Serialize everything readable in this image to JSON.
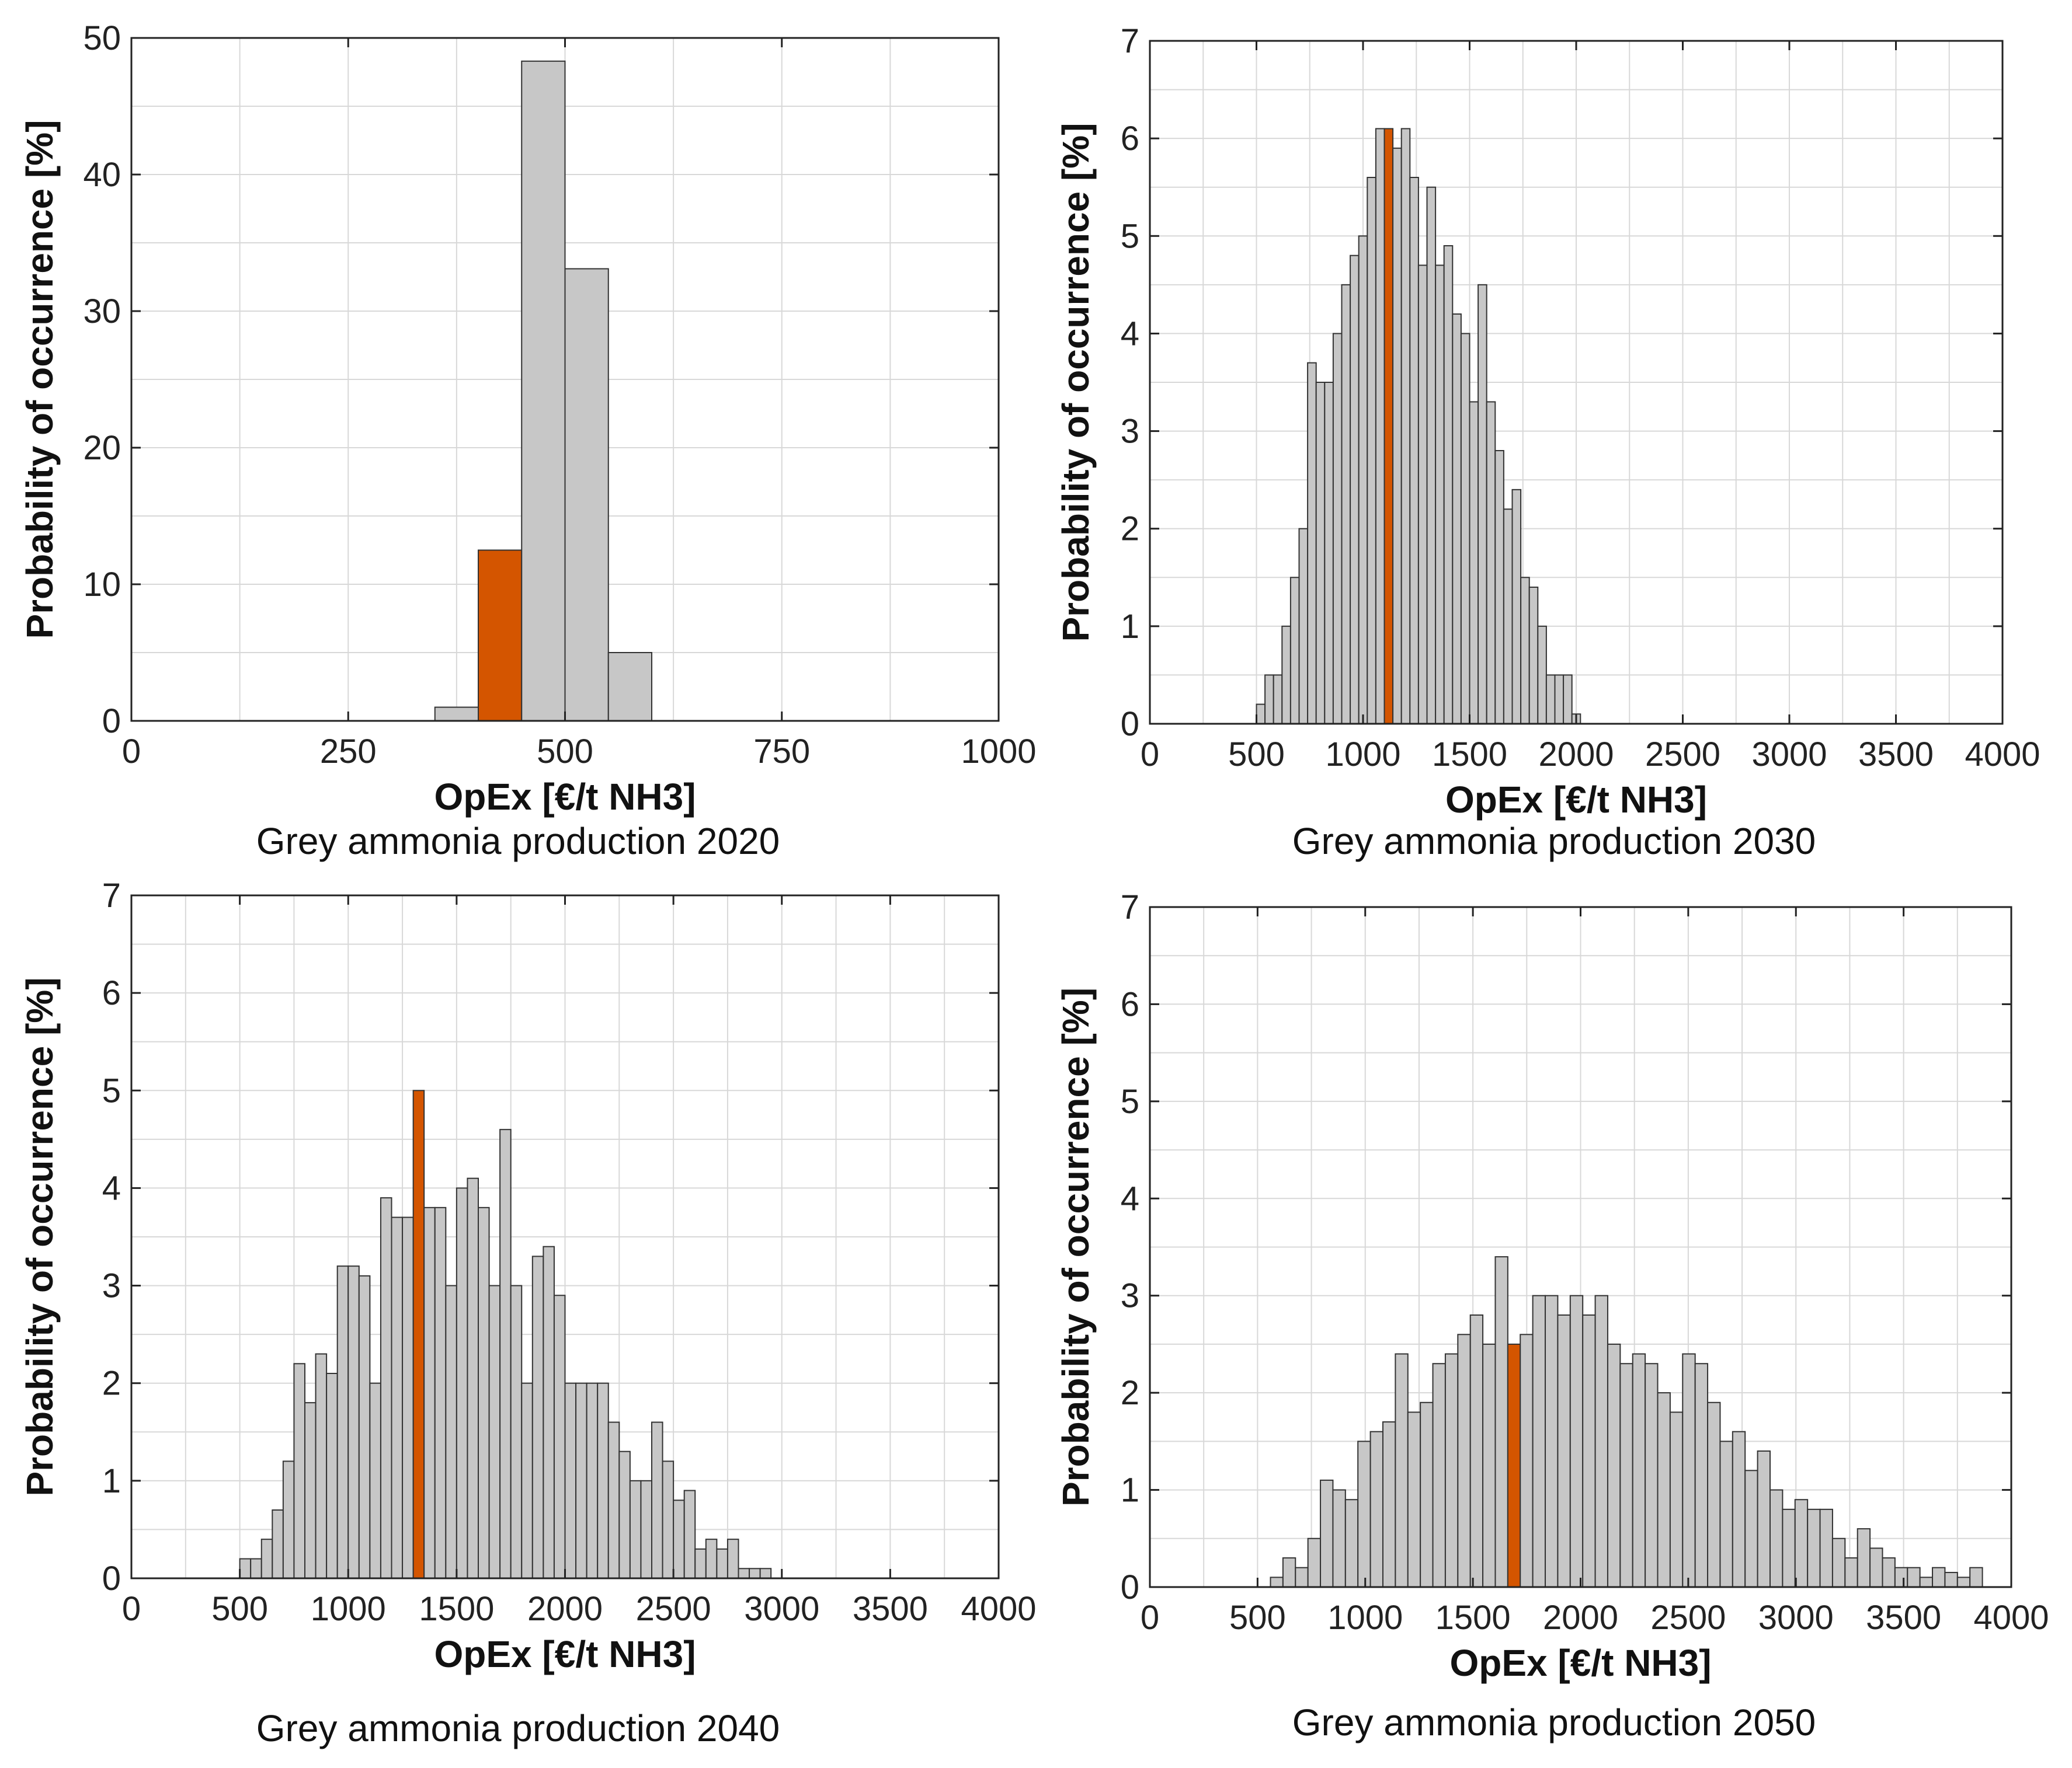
{
  "colors": {
    "bar": "#c7c7c7",
    "highlight": "#d45500",
    "grid": "#d8d8d8",
    "axis": "#222222"
  },
  "chart_data": [
    {
      "type": "bar",
      "caption": "Grey ammonia production 2020",
      "xlabel": "OpEx [€/t NH3]",
      "ylabel": "Probability of occurrence [%]",
      "xlim": [
        0,
        1000
      ],
      "ylim": [
        0,
        50
      ],
      "xticks": [
        0,
        250,
        500,
        750,
        1000
      ],
      "yticks": [
        0,
        10,
        20,
        30,
        40,
        50
      ],
      "bin_width": 50,
      "bins": [
        350,
        400,
        450,
        500,
        550
      ],
      "values": [
        1,
        12.5,
        48.3,
        33.1,
        5
      ],
      "highlight_bin": 400
    },
    {
      "type": "bar",
      "caption": "Grey ammonia production 2030",
      "xlabel": "OpEx [€/t NH3]",
      "ylabel": "Probability of occurrence [%]",
      "xlim": [
        0,
        4000
      ],
      "ylim": [
        0,
        7
      ],
      "xticks": [
        0,
        500,
        1000,
        1500,
        2000,
        2500,
        3000,
        3500,
        4000
      ],
      "yticks": [
        0,
        1,
        2,
        3,
        4,
        5,
        6,
        7
      ],
      "bin_width": 40,
      "bins": [
        500,
        540,
        580,
        620,
        660,
        700,
        740,
        780,
        820,
        860,
        900,
        940,
        980,
        1020,
        1060,
        1100,
        1140,
        1180,
        1220,
        1260,
        1300,
        1340,
        1380,
        1420,
        1460,
        1500,
        1540,
        1580,
        1620,
        1660,
        1700,
        1740,
        1780,
        1820,
        1860,
        1900,
        1940,
        1980,
        2020,
        2060,
        2100
      ],
      "values": [
        0.2,
        0.5,
        0.5,
        1.0,
        1.5,
        2.0,
        3.7,
        3.5,
        3.5,
        4.0,
        4.5,
        4.8,
        5.0,
        5.6,
        6.1,
        6.1,
        5.9,
        6.1,
        5.6,
        4.7,
        5.5,
        4.7,
        4.9,
        4.2,
        4.0,
        3.3,
        4.5,
        3.3,
        2.8,
        2.2,
        2.4,
        1.5,
        1.4,
        1.0,
        0.5,
        0.5,
        0.5,
        0.1,
        0,
        0,
        0
      ],
      "highlight_bin": 1100
    },
    {
      "type": "bar",
      "caption": "Grey ammonia production 2040",
      "xlabel": "OpEx [€/t NH3]",
      "ylabel": "Probability of occurrence [%]",
      "xlim": [
        0,
        4000
      ],
      "ylim": [
        0,
        7
      ],
      "xticks": [
        0,
        500,
        1000,
        1500,
        2000,
        2500,
        3000,
        3500,
        4000
      ],
      "yticks": [
        0,
        1,
        2,
        3,
        4,
        5,
        6,
        7
      ],
      "bin_width": 50,
      "bins": [
        500,
        550,
        600,
        650,
        700,
        750,
        800,
        850,
        900,
        950,
        1000,
        1050,
        1100,
        1150,
        1200,
        1250,
        1300,
        1350,
        1400,
        1450,
        1500,
        1550,
        1600,
        1650,
        1700,
        1750,
        1800,
        1850,
        1900,
        1950,
        2000,
        2050,
        2100,
        2150,
        2200,
        2250,
        2300,
        2350,
        2400,
        2450,
        2500,
        2550,
        2600,
        2650,
        2700,
        2750,
        2800,
        2850,
        2900
      ],
      "values": [
        0.2,
        0.2,
        0.4,
        0.7,
        1.2,
        2.2,
        1.8,
        2.3,
        2.1,
        3.2,
        3.2,
        3.1,
        2.0,
        3.9,
        3.7,
        3.7,
        5.0,
        3.8,
        3.8,
        3.0,
        4.0,
        4.1,
        3.8,
        3.0,
        4.6,
        3.0,
        2.0,
        3.3,
        3.4,
        2.9,
        2.0,
        2.0,
        2.0,
        2.0,
        1.6,
        1.3,
        1.0,
        1.0,
        1.6,
        1.2,
        0.8,
        0.9,
        0.3,
        0.4,
        0.3,
        0.4,
        0.1,
        0.1,
        0.1
      ],
      "highlight_bin": 1300
    },
    {
      "type": "bar",
      "caption": "Grey ammonia production 2050",
      "xlabel": "OpEx [€/t NH3]",
      "ylabel": "Probability of occurrence [%]",
      "xlim": [
        0,
        4000
      ],
      "ylim": [
        0,
        7
      ],
      "xticks": [
        0,
        500,
        1000,
        1500,
        2000,
        2500,
        3000,
        3500,
        4000
      ],
      "yticks": [
        0,
        1,
        2,
        3,
        4,
        5,
        6,
        7
      ],
      "bin_width": 58,
      "bins": [
        560,
        618,
        676,
        734,
        792,
        850,
        908,
        966,
        1024,
        1082,
        1140,
        1198,
        1256,
        1314,
        1372,
        1430,
        1488,
        1546,
        1604,
        1662,
        1720,
        1778,
        1836,
        1894,
        1952,
        2010,
        2068,
        2126,
        2184,
        2242,
        2300,
        2358,
        2416,
        2474,
        2532,
        2590,
        2648,
        2706,
        2764,
        2822,
        2880,
        2938,
        2996,
        3054,
        3112,
        3170,
        3228,
        3286,
        3344,
        3402,
        3460,
        3518,
        3576,
        3634,
        3692,
        3750,
        3808
      ],
      "values": [
        0.1,
        0.3,
        0.2,
        0.5,
        1.1,
        1.0,
        0.9,
        1.5,
        1.6,
        1.7,
        2.4,
        1.8,
        1.9,
        2.3,
        2.4,
        2.6,
        2.8,
        2.5,
        3.4,
        2.5,
        2.6,
        3.0,
        3.0,
        2.8,
        3.0,
        2.8,
        3.0,
        2.5,
        2.3,
        2.4,
        2.3,
        2.0,
        1.8,
        2.4,
        2.3,
        1.9,
        1.5,
        1.6,
        1.2,
        1.4,
        1.0,
        0.8,
        0.9,
        0.8,
        0.8,
        0.5,
        0.3,
        0.6,
        0.4,
        0.3,
        0.2,
        0.2,
        0.1,
        0.2,
        0.15,
        0.1,
        0.2
      ],
      "highlight_bin": 1662
    }
  ]
}
